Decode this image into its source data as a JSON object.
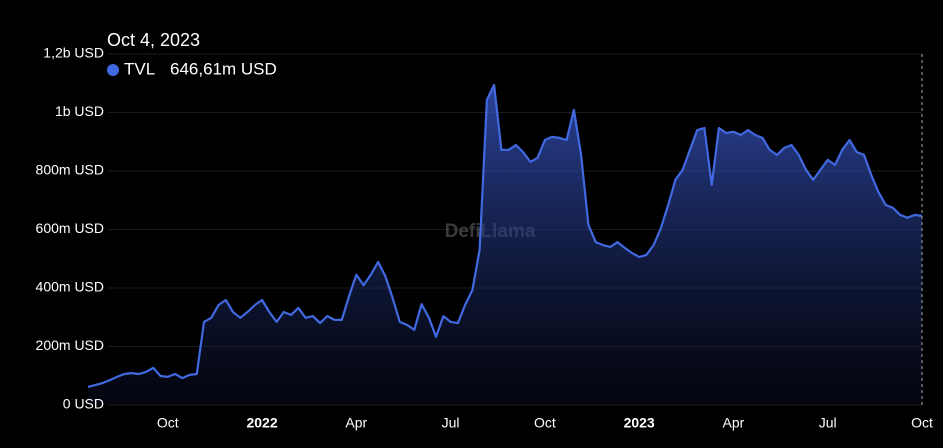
{
  "chart_data": {
    "type": "area",
    "categories": [
      null,
      null,
      null,
      null,
      null,
      null,
      null,
      null,
      null,
      null,
      null,
      "Oct",
      null,
      null,
      null,
      null,
      null,
      null,
      null,
      null,
      null,
      null,
      null,
      null,
      "2022",
      null,
      null,
      null,
      null,
      null,
      null,
      null,
      null,
      null,
      null,
      null,
      null,
      "Apr",
      null,
      null,
      null,
      null,
      null,
      null,
      null,
      null,
      null,
      null,
      null,
      null,
      "Jul",
      null,
      null,
      null,
      null,
      null,
      null,
      null,
      null,
      null,
      null,
      null,
      null,
      "Oct",
      null,
      null,
      null,
      null,
      null,
      null,
      null,
      null,
      null,
      null,
      null,
      null,
      "2023",
      null,
      null,
      null,
      null,
      null,
      null,
      null,
      null,
      null,
      null,
      null,
      null,
      "Apr",
      null,
      null,
      null,
      null,
      null,
      null,
      null,
      null,
      null,
      null,
      null,
      null,
      "Jul",
      null,
      null,
      null,
      null,
      null,
      null,
      null,
      null,
      null,
      null,
      null,
      null,
      "Oct"
    ],
    "series": [
      {
        "name": "TVL",
        "color": "#4169e1",
        "values": [
          62000000,
          68000000,
          75000000,
          85000000,
          96000000,
          106000000,
          109000000,
          106000000,
          113000000,
          127000000,
          99000000,
          96000000,
          106000000,
          92000000,
          103000000,
          106000000,
          284000000,
          298000000,
          342000000,
          359000000,
          318000000,
          298000000,
          318000000,
          342000000,
          359000000,
          318000000,
          284000000,
          318000000,
          308000000,
          332000000,
          298000000,
          304000000,
          280000000,
          304000000,
          291000000,
          291000000,
          373000000,
          445000000,
          410000000,
          445000000,
          489000000,
          441000000,
          366000000,
          284000000,
          274000000,
          257000000,
          345000000,
          298000000,
          233000000,
          304000000,
          284000000,
          280000000,
          342000000,
          393000000,
          530000000,
          1043000000,
          1094000000,
          872000000,
          872000000,
          889000000,
          865000000,
          831000000,
          845000000,
          906000000,
          917000000,
          913000000,
          906000000,
          1009000000,
          855000000,
          616000000,
          557000000,
          547000000,
          540000000,
          557000000,
          537000000,
          520000000,
          506000000,
          513000000,
          547000000,
          605000000,
          684000000,
          770000000,
          804000000,
          872000000,
          940000000,
          947000000,
          752000000,
          947000000,
          930000000,
          934000000,
          923000000,
          940000000,
          923000000,
          913000000,
          872000000,
          855000000,
          879000000,
          889000000,
          855000000,
          804000000,
          770000000,
          804000000,
          838000000,
          821000000,
          872000000,
          906000000,
          865000000,
          855000000,
          787000000,
          728000000,
          684000000,
          674000000,
          650000000,
          640000000,
          650000000,
          646610000
        ]
      }
    ],
    "ylim": [
      0,
      1200000000
    ],
    "yticks": [
      {
        "value": 0,
        "label": "0 USD"
      },
      {
        "value": 200000000,
        "label": "200m USD"
      },
      {
        "value": 400000000,
        "label": "400m USD"
      },
      {
        "value": 600000000,
        "label": "600m USD"
      },
      {
        "value": 800000000,
        "label": "800m USD"
      },
      {
        "value": 1000000000,
        "label": "1b USD"
      },
      {
        "value": 1200000000,
        "label": "1,2b USD"
      }
    ],
    "grid": true,
    "tooltip": {
      "date": "Oct 4, 2023",
      "label": "646,61m USD"
    },
    "watermark": "DefiLlama"
  }
}
